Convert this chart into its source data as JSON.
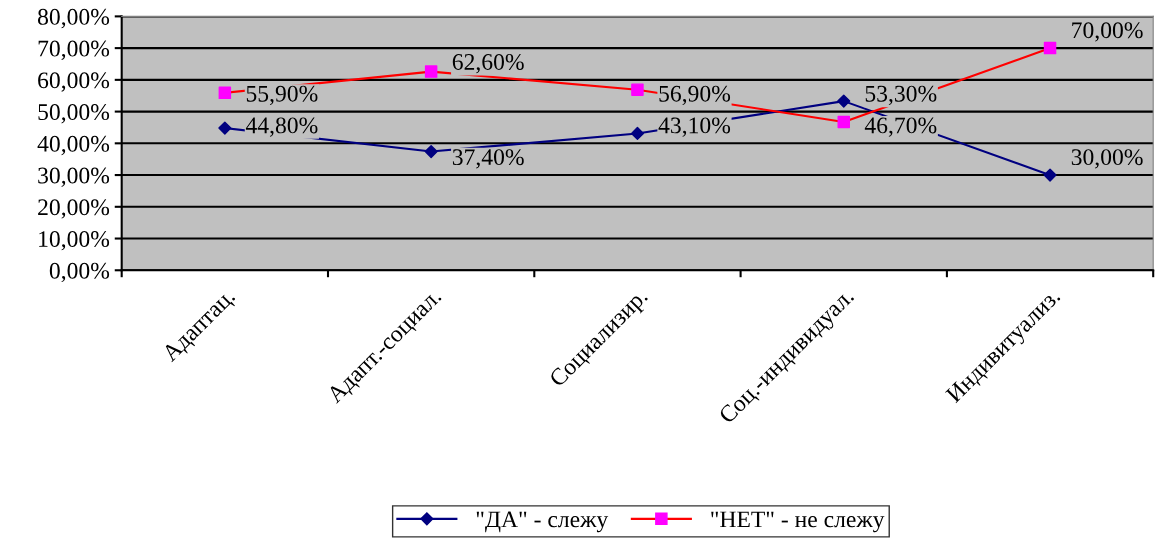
{
  "chart_data": {
    "type": "line",
    "categories": [
      "Адаптац.",
      "Адапт.-социал.",
      "Социализир.",
      "Соц.-индивидуал.",
      "Индивитуализ."
    ],
    "series": [
      {
        "name": "\"ДА\" - слежу",
        "color": "#000080",
        "marker": "diamond",
        "values": [
          44.8,
          37.4,
          43.1,
          53.3,
          30.0
        ],
        "value_labels": [
          "44,80%",
          "37,40%",
          "43,10%",
          "53,30%",
          "30,00%"
        ]
      },
      {
        "name": "\"НЕТ\" - не слежу",
        "color": "#ff0000",
        "colors": [
          "#ff00ff",
          "#ff00ff",
          "#ff00ff",
          "#ff00ff",
          "#ff00ff"
        ],
        "marker": "square",
        "values": [
          55.9,
          62.6,
          56.9,
          46.7,
          70.0
        ],
        "value_labels": [
          "55,90%",
          "62,60%",
          "56,90%",
          "46,70%",
          "70,00%"
        ]
      }
    ],
    "ylim": [
      0,
      80
    ],
    "yticks": [
      {
        "value": 0,
        "label": "0,00%"
      },
      {
        "value": 10,
        "label": "10,00%"
      },
      {
        "value": 20,
        "label": "20,00%"
      },
      {
        "value": 30,
        "label": "30,00%"
      },
      {
        "value": 40,
        "label": "40,00%"
      },
      {
        "value": 50,
        "label": "50,00%"
      },
      {
        "value": 60,
        "label": "60,00%"
      },
      {
        "value": 70,
        "label": "70,00%"
      },
      {
        "value": 80,
        "label": "80,00%"
      }
    ],
    "grid": "y",
    "legend": "bottom",
    "line_style": "solid"
  }
}
